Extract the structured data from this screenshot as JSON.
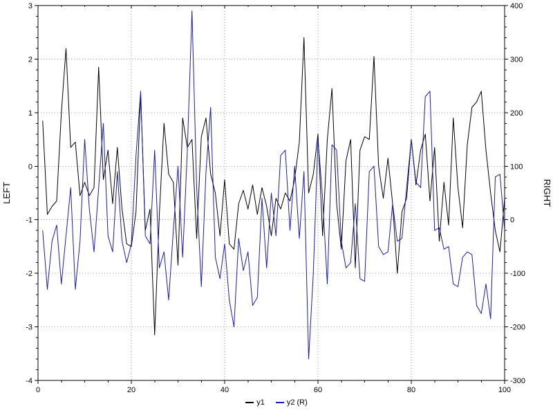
{
  "chart_data": {
    "type": "line",
    "title": "",
    "x_axis": {
      "min": 0,
      "max": 100,
      "major_ticks": [
        0,
        20,
        40,
        60,
        80,
        100
      ],
      "minor_step": 5
    },
    "left_axis": {
      "label": "LEFT",
      "min": -4,
      "max": 3,
      "major_ticks": [
        3,
        2,
        1,
        0,
        -1,
        -2,
        -3,
        -4
      ],
      "minor_step": 0.2
    },
    "right_axis": {
      "label": "RIGHT",
      "min": -300,
      "max": 400,
      "major_ticks": [
        400,
        300,
        200,
        100,
        0,
        -100,
        -200,
        -300
      ],
      "minor_step": 20
    },
    "grid": "dotted",
    "legend": {
      "position": "bottom-center",
      "entries": [
        {
          "label": "y1",
          "color": "#000000",
          "axis": "left"
        },
        {
          "label": "y2 (R)",
          "color": "#1a1ab4",
          "axis": "right"
        }
      ]
    },
    "series": [
      {
        "name": "y1",
        "axis": "left",
        "color": "#000000",
        "x_start": 1,
        "x_step": 1,
        "y": [
          0.85,
          -0.9,
          -0.75,
          -0.65,
          1.0,
          2.2,
          0.35,
          0.45,
          -0.55,
          -0.3,
          -0.55,
          -0.4,
          1.85,
          -0.25,
          0.3,
          -0.7,
          0.35,
          -0.8,
          -1.45,
          -1.5,
          -0.85,
          1.35,
          -1.2,
          -0.8,
          -3.15,
          -0.9,
          0.8,
          -0.15,
          -0.3,
          -1.85,
          0.9,
          0.35,
          0.5,
          -1.35,
          0.55,
          0.9,
          -0.15,
          -0.5,
          -1.3,
          -0.25,
          -1.45,
          -1.55,
          -0.7,
          -0.45,
          -0.8,
          -0.35,
          -0.9,
          -0.4,
          -0.75,
          -1.3,
          -0.6,
          -0.8,
          -0.5,
          -0.65,
          -0.25,
          0.45,
          2.4,
          -0.5,
          -0.15,
          0.6,
          -1.3,
          0.5,
          1.45,
          -0.7,
          -1.55,
          0.1,
          0.5,
          -1.9,
          0.3,
          0.55,
          0.5,
          2.05,
          0.0,
          -0.6,
          0.15,
          -0.7,
          -2.0,
          -0.85,
          -0.6,
          0.5,
          -0.35,
          0.3,
          0.6,
          -0.65,
          0.35,
          -1.4,
          -0.3,
          -1.1,
          0.9,
          -0.4,
          -1.15,
          0.4,
          1.1,
          1.2,
          1.4,
          0.3,
          -0.5,
          -1.2,
          -1.6,
          -0.6
        ]
      },
      {
        "name": "y2 (R)",
        "axis": "right",
        "color": "#1a1ab4",
        "x_start": 1,
        "x_step": 1,
        "y": [
          -20,
          -130,
          -40,
          -10,
          -120,
          -30,
          60,
          -130,
          -40,
          150,
          20,
          -60,
          60,
          180,
          -30,
          -60,
          90,
          -40,
          -80,
          -45,
          120,
          240,
          -30,
          -45,
          130,
          -90,
          -60,
          -150,
          -20,
          100,
          -70,
          130,
          390,
          60,
          -125,
          90,
          210,
          -70,
          -110,
          -45,
          -150,
          -200,
          -35,
          -95,
          -60,
          -160,
          -145,
          40,
          -90,
          50,
          -30,
          120,
          130,
          -20,
          100,
          -35,
          90,
          -260,
          -100,
          150,
          40,
          -120,
          140,
          130,
          -40,
          -90,
          -80,
          30,
          -110,
          -115,
          90,
          100,
          -50,
          -65,
          -60,
          30,
          -40,
          -35,
          60,
          150,
          70,
          60,
          230,
          240,
          -20,
          -15,
          -55,
          -50,
          -120,
          -125,
          -70,
          -60,
          -65,
          -160,
          -175,
          -120,
          -185,
          80,
          85,
          -20
        ]
      }
    ]
  }
}
